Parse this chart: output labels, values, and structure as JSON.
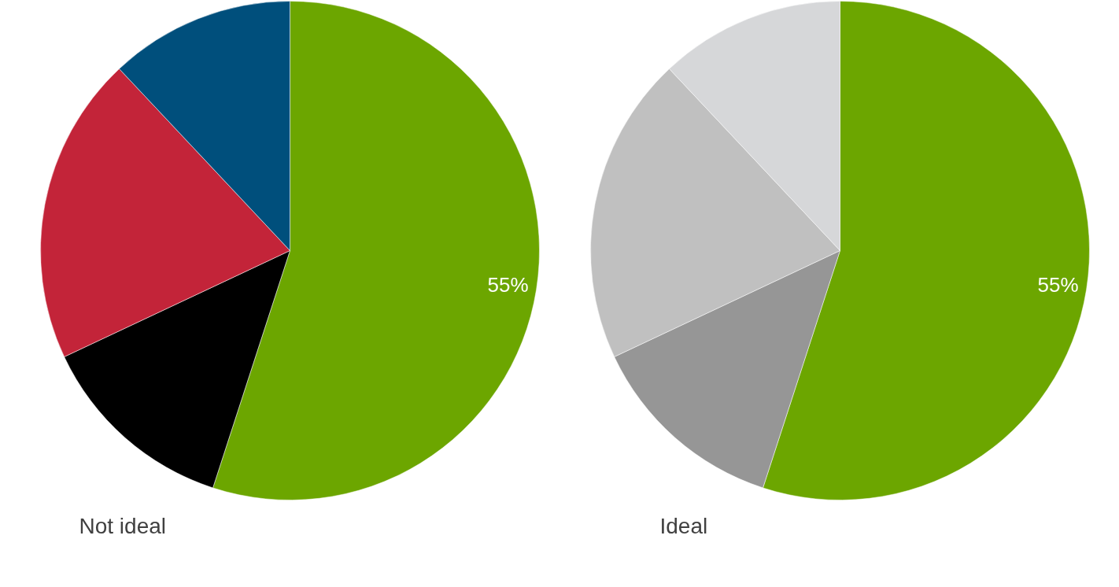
{
  "chart_data": [
    {
      "type": "pie",
      "title": "Not ideal",
      "categories": [
        null,
        null,
        null,
        null
      ],
      "values": [
        55,
        13,
        20,
        12
      ],
      "colors": [
        "#6ca600",
        "#000000",
        "#c32439",
        "#004f7c"
      ],
      "value_labels": [
        "55%",
        null,
        null,
        null
      ]
    },
    {
      "type": "pie",
      "title": "Ideal",
      "categories": [
        null,
        null,
        null,
        null
      ],
      "values": [
        55,
        13,
        20,
        12
      ],
      "colors": [
        "#6ca600",
        "#969696",
        "#c0c0c0",
        "#d6d7d9"
      ],
      "value_labels": [
        "55%",
        null,
        null,
        null
      ]
    }
  ]
}
